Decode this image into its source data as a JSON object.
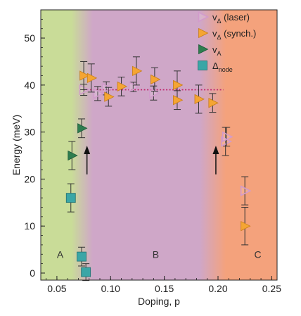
{
  "chart_data": {
    "type": "scatter",
    "xlabel": "Doping, p",
    "ylabel": "Energy (meV)",
    "xlim": [
      0.035,
      0.255
    ],
    "ylim": [
      -1.5,
      56
    ],
    "x_ticks": [
      0.05,
      0.1,
      0.15,
      0.2,
      0.25
    ],
    "x_tick_labels": [
      "0.05",
      "0.10",
      "0.15",
      "0.20",
      "0.25"
    ],
    "y_ticks": [
      0,
      10,
      20,
      30,
      40,
      50
    ],
    "y_tick_labels": [
      "0",
      "10",
      "20",
      "30",
      "40",
      "50"
    ],
    "legend_position": "top-right",
    "regions": [
      {
        "label": "A",
        "x_from": 0.035,
        "x_to": 0.068,
        "color": "#c9dc98",
        "label_at": [
          0.053,
          4
        ]
      },
      {
        "label": "B",
        "x_from": 0.068,
        "x_to": 0.205,
        "color": "#cfa7c8",
        "label_at": [
          0.142,
          4
        ]
      },
      {
        "label": "C",
        "x_from": 0.205,
        "x_to": 0.255,
        "color": "#f4a27c",
        "label_at": [
          0.237,
          4
        ]
      }
    ],
    "series": [
      {
        "legend_main": "v",
        "legend_sub": "Δ",
        "legend_suffix": " (laser)",
        "marker": "triangle-right-open",
        "color": "#d29bcc",
        "points": [
          {
            "x": 0.075,
            "y": 39,
            "err": 1.2
          },
          {
            "x": 0.088,
            "y": 38.2,
            "err": 1.5
          },
          {
            "x": 0.096,
            "y": 39.3,
            "err": 1.4
          },
          {
            "x": 0.121,
            "y": 39.6,
            "err": 1.0
          },
          {
            "x": 0.14,
            "y": 38.3,
            "err": 1.5
          },
          {
            "x": 0.207,
            "y": 28,
            "err": 3
          },
          {
            "x": 0.208,
            "y": 29,
            "err": 2
          },
          {
            "x": 0.225,
            "y": 17.5,
            "err": 3
          }
        ]
      },
      {
        "legend_main": "v",
        "legend_sub": "Δ",
        "legend_suffix": " (synch.)",
        "marker": "triangle-right",
        "color": "#f5a533",
        "points": [
          {
            "x": 0.075,
            "y": 42,
            "err": 3
          },
          {
            "x": 0.082,
            "y": 41.5,
            "err": 3
          },
          {
            "x": 0.098,
            "y": 37.5,
            "err": 2
          },
          {
            "x": 0.11,
            "y": 39.7,
            "err": 2
          },
          {
            "x": 0.124,
            "y": 43,
            "err": 3
          },
          {
            "x": 0.141,
            "y": 41.2,
            "err": 2.5
          },
          {
            "x": 0.162,
            "y": 40,
            "err": 3
          },
          {
            "x": 0.162,
            "y": 36.8,
            "err": 2
          },
          {
            "x": 0.182,
            "y": 37,
            "err": 3
          },
          {
            "x": 0.195,
            "y": 36.2,
            "err": 2
          },
          {
            "x": 0.225,
            "y": 10,
            "err": 4
          }
        ]
      },
      {
        "legend_main": "v",
        "legend_sub": "A",
        "legend_suffix": "",
        "marker": "triangle-right",
        "color": "#2e7d4f",
        "points": [
          {
            "x": 0.064,
            "y": 25,
            "err": 3
          },
          {
            "x": 0.073,
            "y": 30.8,
            "err": 2
          }
        ]
      },
      {
        "legend_main": "Δ",
        "legend_sub": "node",
        "legend_suffix": "",
        "marker": "square",
        "color": "#3aa6a6",
        "points": [
          {
            "x": 0.063,
            "y": 16,
            "err": 3
          },
          {
            "x": 0.073,
            "y": 3.5,
            "err": 2
          },
          {
            "x": 0.077,
            "y": 0.2,
            "err": 1.8
          }
        ]
      }
    ],
    "dotted_line": {
      "x_from": 0.075,
      "x_to": 0.205,
      "y": 39,
      "color": "#c0206a"
    },
    "arrows": [
      {
        "x": 0.078,
        "y_from": 21,
        "y_to": 26.5
      },
      {
        "x": 0.198,
        "y_from": 21,
        "y_to": 26.5
      }
    ]
  }
}
